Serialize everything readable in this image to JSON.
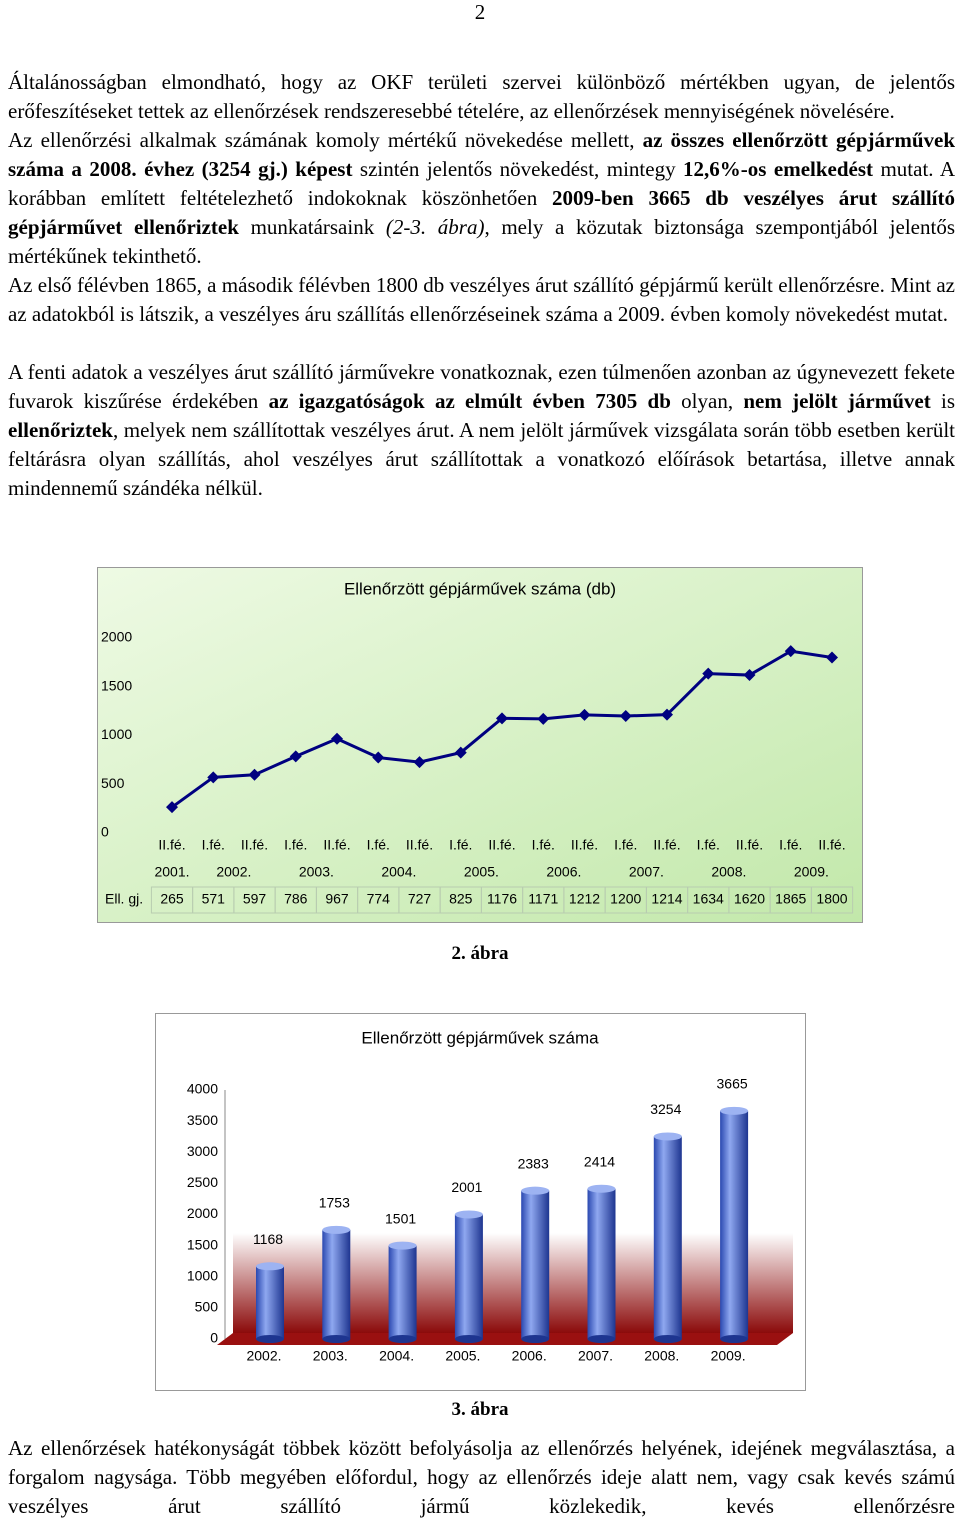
{
  "page_number": "2",
  "paragraphs": [
    [
      {
        "t": "Általánosságban elmondható, hogy az OKF területi szervei különböző mértékben ugyan, de jelentős erőfeszítéseket tettek az ellenőrzések rendszeresebbé tételére, az ellenőrzések mennyiségének növelésére."
      }
    ],
    [
      {
        "t": "Az ellenőrzési alkalmak számának komoly mértékű növekedése mellett, "
      },
      {
        "t": "az összes ellenőrzött gépjárművek száma a 2008. évhez (3254 gj.) képest",
        "b": true
      },
      {
        "t": " szintén jelentős növekedést, mintegy "
      },
      {
        "t": "12,6%-os emelkedést",
        "b": true
      },
      {
        "t": " mutat. A korábban említett feltételezhető indokoknak köszönhetően "
      },
      {
        "t": "2009-ben 3665 db veszélyes árut szállító gépjárművet ellenőriztek",
        "b": true
      },
      {
        "t": " munkatársaink "
      },
      {
        "t": "(2-3. ábra)",
        "i": true
      },
      {
        "t": ", mely a közutak biztonsága szempontjából jelentős mértékűnek tekinthető."
      }
    ],
    [
      {
        "t": "Az első félévben 1865, a második félévben 1800 db veszélyes árut szállító gépjármű került ellenőrzésre. Mint az az adatokból is látszik, a veszélyes áru szállítás ellenőrzéseinek száma a 2009. évben komoly növekedést mutat."
      }
    ],
    [
      {
        "t": "A fenti adatok a veszélyes árut szállító járművekre vonatkoznak, ezen túlmenően azonban az úgynevezett fekete fuvarok kiszűrése érdekében "
      },
      {
        "t": "az igazgatóságok az elmúlt évben 7305 db",
        "b": true
      },
      {
        "t": " olyan, "
      },
      {
        "t": "nem jelölt járművet",
        "b": true
      },
      {
        "t": " is "
      },
      {
        "t": "ellenőriztek",
        "b": true
      },
      {
        "t": ", melyek nem szállítottak veszélyes árut. A nem jelölt járművek vizsgálata során több esetben került feltárásra olyan szállítás, ahol veszélyes árut szállítottak a vonatkozó előírások betartása, illetve annak mindennemű szándéka nélkül."
      }
    ]
  ],
  "chart_data": [
    {
      "type": "line",
      "title": "Ellenőrzött gépjárművek száma (db)",
      "categories": [
        "II.fé.",
        "I.fé.",
        "II.fé.",
        "I.fé.",
        "II.fé.",
        "I.fé.",
        "II.fé.",
        "I.fé.",
        "II.fé.",
        "I.fé.",
        "II.fé.",
        "I.fé.",
        "II.fé.",
        "I.fé.",
        "II.fé.",
        "I.fé.",
        "II.fé."
      ],
      "year_labels": [
        "2001.",
        "2002.",
        "2003.",
        "2004.",
        "2005.",
        "2006.",
        "2007.",
        "2008.",
        "2009."
      ],
      "series": [
        {
          "name": "Ell. gj.",
          "color": "#000080",
          "values": [
            265,
            571,
            597,
            786,
            967,
            774,
            727,
            825,
            1176,
            1171,
            1212,
            1200,
            1214,
            1634,
            1620,
            1865,
            1800
          ]
        }
      ],
      "ylim": [
        0,
        2000
      ],
      "yticks": [
        0,
        500,
        1000,
        1500,
        2000
      ]
    },
    {
      "type": "bar",
      "title": "Ellenőrzött gépjárművek száma",
      "categories": [
        "2002.",
        "2003.",
        "2004.",
        "2005.",
        "2006.",
        "2007.",
        "2008.",
        "2009."
      ],
      "values": [
        1168,
        1753,
        1501,
        2001,
        2383,
        2414,
        3254,
        3665
      ],
      "color": "#4a6fd8",
      "ylim": [
        0,
        4000
      ],
      "yticks": [
        0,
        500,
        1000,
        1500,
        2000,
        2500,
        3000,
        3500,
        4000
      ]
    }
  ],
  "captions": [
    "2. ábra",
    "3. ábra"
  ],
  "closing": "Az ellenőrzések hatékonyságát többek között befolyásolja az ellenőrzés helyének, idejének megválasztása, a forgalom nagysága. Több megyében előfordul, hogy az ellenőrzés ideje alatt nem, vagy csak kevés számú veszélyes árut szállító jármű közlekedik, kevés ellenőrzésre"
}
